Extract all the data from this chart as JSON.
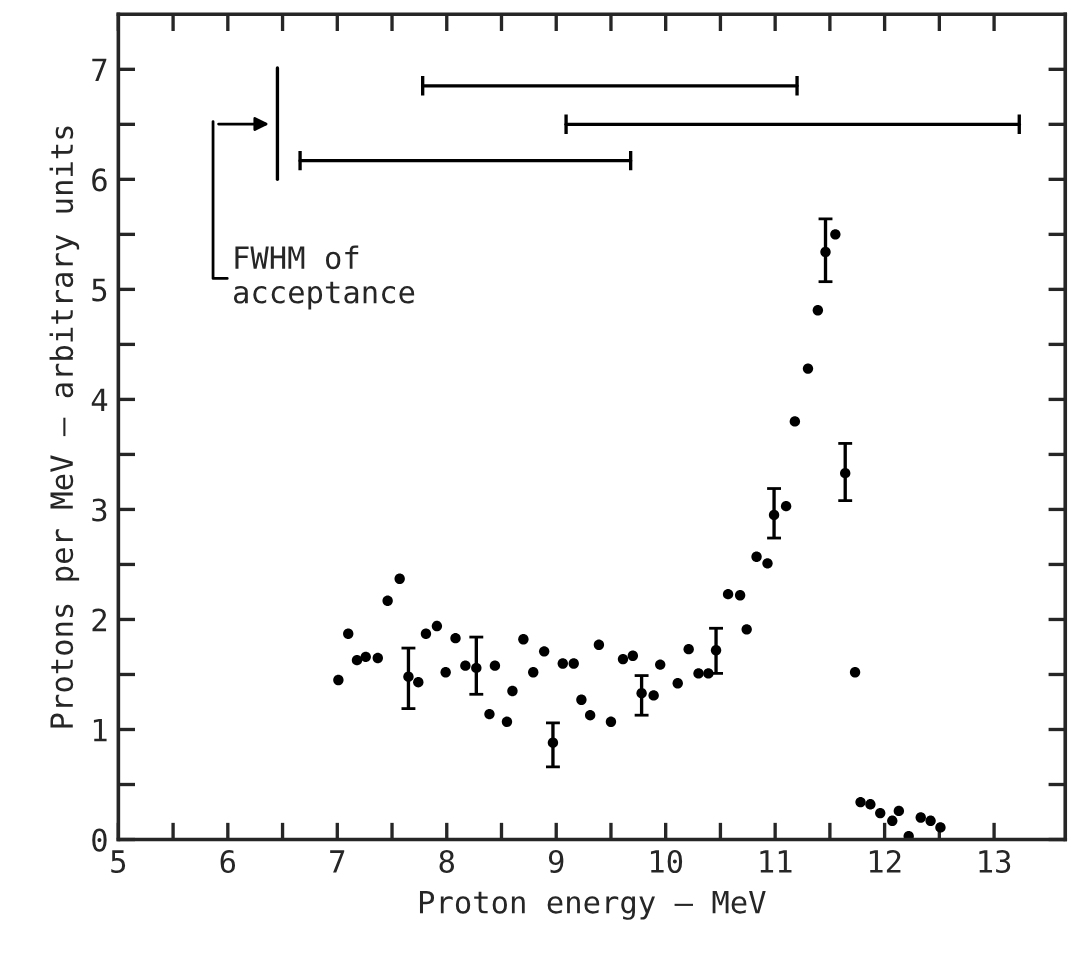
{
  "chart_data": {
    "type": "scatter",
    "xlabel": "Proton energy — MeV",
    "ylabel": "Protons per MeV — arbitrary units",
    "xlim": [
      5,
      13.65
    ],
    "ylim": [
      0,
      7.5
    ],
    "xticks": [
      5,
      {
        "value": 5.5,
        "label": null
      },
      6,
      {
        "value": 6.5,
        "label": null
      },
      7,
      {
        "value": 7.5,
        "label": null
      },
      8,
      {
        "value": 8.5,
        "label": null
      },
      9,
      {
        "value": 9.5,
        "label": null
      },
      10,
      {
        "value": 10.5,
        "label": null
      },
      11,
      {
        "value": 11.5,
        "label": null
      },
      12,
      {
        "value": 12.5,
        "label": null
      },
      13
    ],
    "yticks": [
      0,
      {
        "value": 0.5,
        "label": null
      },
      1,
      {
        "value": 1.5,
        "label": null
      },
      2,
      {
        "value": 2.5,
        "label": null
      },
      3,
      {
        "value": 3.5,
        "label": null
      },
      4,
      {
        "value": 4.5,
        "label": null
      },
      5,
      {
        "value": 5.5,
        "label": null
      },
      6,
      {
        "value": 6.5,
        "label": null
      },
      7
    ],
    "marker": "circle",
    "grid": false,
    "legend": false,
    "annotations": [
      "FWHM of\nacceptance"
    ],
    "series": [
      {
        "color": "#000000",
        "x": [
          7.01,
          7.1,
          7.18,
          7.26,
          7.37,
          7.46,
          7.57,
          7.65,
          7.74,
          7.81,
          7.91,
          7.99,
          8.08,
          8.17,
          8.27,
          8.39,
          8.44,
          8.55,
          8.6,
          8.7,
          8.79,
          8.89,
          8.97,
          9.06,
          9.16,
          9.23,
          9.31,
          9.39,
          9.5,
          9.61,
          9.7,
          9.78,
          9.89,
          9.95,
          10.11,
          10.21,
          10.3,
          10.39,
          10.46,
          10.57,
          10.68,
          10.74,
          10.83,
          10.93,
          10.99,
          11.1,
          11.18,
          11.3,
          11.39,
          11.46,
          11.55,
          11.64,
          11.73,
          11.78,
          11.87,
          11.96,
          12.07,
          12.13,
          12.22,
          12.33,
          12.42,
          12.51
        ],
        "values": [
          1.45,
          1.87,
          1.63,
          1.66,
          1.65,
          2.17,
          2.37,
          1.48,
          1.43,
          1.87,
          1.94,
          1.52,
          1.83,
          1.58,
          1.56,
          1.14,
          1.58,
          1.07,
          1.35,
          1.82,
          1.52,
          1.71,
          0.88,
          1.6,
          1.6,
          1.27,
          1.13,
          1.77,
          1.07,
          1.64,
          1.67,
          1.33,
          1.31,
          1.59,
          1.42,
          1.73,
          1.51,
          1.51,
          1.72,
          2.23,
          2.22,
          1.91,
          2.57,
          2.51,
          2.95,
          3.03,
          3.8,
          4.28,
          4.81,
          5.34,
          5.5,
          3.33,
          1.52,
          0.34,
          0.32,
          0.24,
          0.17,
          0.26,
          0.03,
          0.2,
          0.17,
          0.11
        ],
        "errors": [
          null,
          null,
          null,
          null,
          null,
          null,
          null,
          [
            1.19,
            1.74
          ],
          null,
          null,
          null,
          null,
          null,
          null,
          [
            1.32,
            1.84
          ],
          null,
          null,
          null,
          null,
          null,
          null,
          null,
          [
            0.66,
            1.06
          ],
          null,
          null,
          null,
          null,
          null,
          null,
          null,
          null,
          [
            1.13,
            1.49
          ],
          null,
          null,
          null,
          null,
          null,
          null,
          [
            1.51,
            1.92
          ],
          null,
          null,
          null,
          null,
          null,
          [
            2.74,
            3.19
          ],
          null,
          null,
          null,
          null,
          [
            5.07,
            5.64
          ],
          null,
          [
            3.08,
            3.6
          ],
          null,
          null,
          null,
          null,
          null,
          null,
          null,
          null,
          null,
          null
        ]
      },
      {
        "type": "line",
        "color": "#000000",
        "marker": "none",
        "x": [
          7.78,
          11.2
        ],
        "values": [
          6.85,
          6.85
        ]
      },
      {
        "type": "line",
        "color": "#000000",
        "marker": "none",
        "x": [
          9.09,
          13.23
        ],
        "values": [
          6.5,
          6.5
        ]
      },
      {
        "type": "line",
        "color": "#000000",
        "marker": "none",
        "x": [
          6.66,
          9.68
        ],
        "values": [
          6.17,
          6.17
        ]
      }
    ]
  }
}
